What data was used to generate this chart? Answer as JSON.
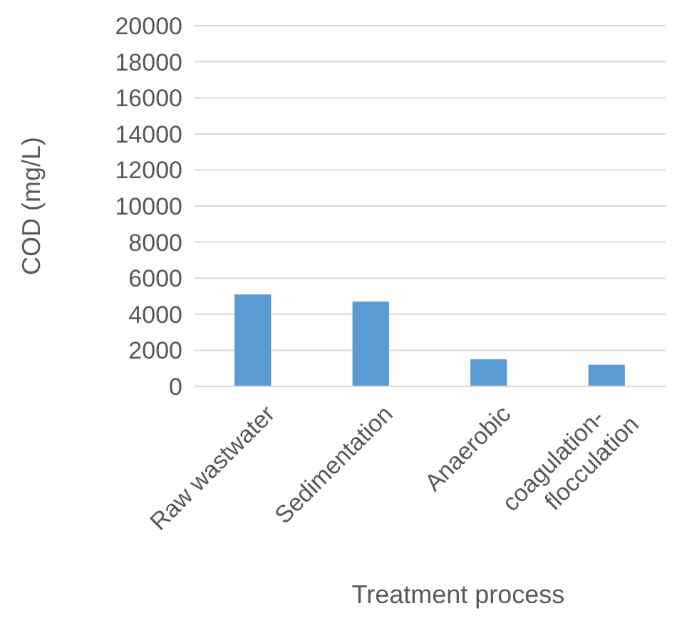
{
  "chart_data": {
    "type": "bar",
    "xlabel": "Treatment process",
    "ylabel": "COD (mg/L)",
    "categories": [
      "Raw wastwater",
      "Sedimentation",
      "Anaerobic",
      "coagulation-flocculation"
    ],
    "values": [
      5100,
      4700,
      1500,
      1200
    ],
    "color": "#5b9bd5",
    "ylim": [
      0,
      20000
    ],
    "yticks": [
      0,
      2000,
      4000,
      6000,
      8000,
      10000,
      12000,
      14000,
      16000,
      18000,
      20000
    ],
    "grid": "y"
  }
}
